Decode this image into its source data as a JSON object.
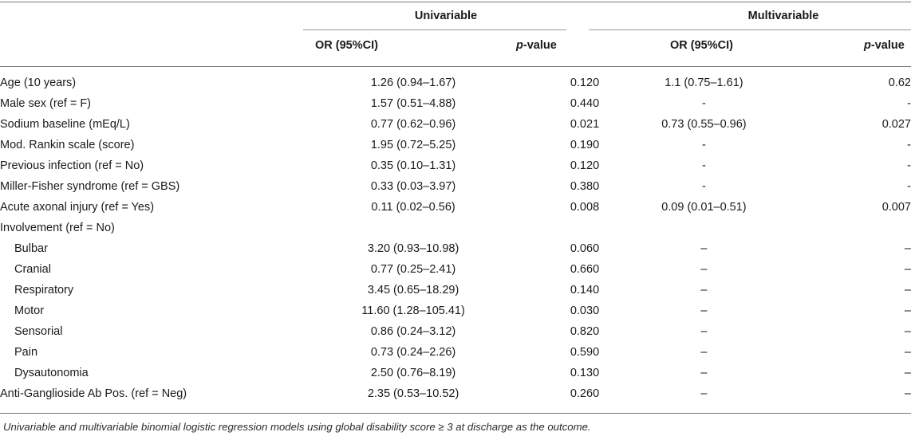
{
  "header": {
    "univariable": "Univariable",
    "multivariable": "Multivariable",
    "or_label": "OR (95%CI)",
    "p_italic": "p",
    "p_rest": "-value"
  },
  "rows": [
    {
      "label": "Age (10 years)",
      "u_or": "1.26 (0.94–1.67)",
      "u_p": "0.120",
      "m_or": "1.1 (0.75–1.61)",
      "m_p": "0.62",
      "indent": false
    },
    {
      "label": "Male sex (ref = F)",
      "u_or": "1.57 (0.51–4.88)",
      "u_p": "0.440",
      "m_or": "-",
      "m_p": "-",
      "indent": false
    },
    {
      "label": "Sodium baseline (mEq/L)",
      "u_or": "0.77 (0.62–0.96)",
      "u_p": "0.021",
      "m_or": "0.73 (0.55–0.96)",
      "m_p": "0.027",
      "indent": false
    },
    {
      "label": "Mod. Rankin scale (score)",
      "u_or": "1.95 (0.72–5.25)",
      "u_p": "0.190",
      "m_or": "-",
      "m_p": "-",
      "indent": false
    },
    {
      "label": "Previous infection (ref = No)",
      "u_or": "0.35 (0.10–1.31)",
      "u_p": "0.120",
      "m_or": "-",
      "m_p": "-",
      "indent": false
    },
    {
      "label": "Miller-Fisher syndrome (ref = GBS)",
      "u_or": "0.33 (0.03–3.97)",
      "u_p": "0.380",
      "m_or": "-",
      "m_p": "-",
      "indent": false
    },
    {
      "label": "Acute axonal injury (ref = Yes)",
      "u_or": "0.11 (0.02–0.56)",
      "u_p": "0.008",
      "m_or": "0.09 (0.01–0.51)",
      "m_p": "0.007",
      "indent": false
    },
    {
      "label": "Involvement (ref = No)",
      "u_or": "",
      "u_p": "",
      "m_or": "",
      "m_p": "",
      "indent": false
    },
    {
      "label": "Bulbar",
      "u_or": "3.20 (0.93–10.98)",
      "u_p": "0.060",
      "m_or": "–",
      "m_p": "–",
      "indent": true
    },
    {
      "label": "Cranial",
      "u_or": "0.77 (0.25–2.41)",
      "u_p": "0.660",
      "m_or": "–",
      "m_p": "–",
      "indent": true
    },
    {
      "label": "Respiratory",
      "u_or": "3.45 (0.65–18.29)",
      "u_p": "0.140",
      "m_or": "–",
      "m_p": "–",
      "indent": true
    },
    {
      "label": "Motor",
      "u_or": "11.60 (1.28–105.41)",
      "u_p": "0.030",
      "m_or": "–",
      "m_p": "–",
      "indent": true
    },
    {
      "label": "Sensorial",
      "u_or": "0.86 (0.24–3.12)",
      "u_p": "0.820",
      "m_or": "–",
      "m_p": "–",
      "indent": true
    },
    {
      "label": "Pain",
      "u_or": "0.73 (0.24–2.26)",
      "u_p": "0.590",
      "m_or": "–",
      "m_p": "–",
      "indent": true
    },
    {
      "label": "Dysautonomia",
      "u_or": "2.50 (0.76–8.19)",
      "u_p": "0.130",
      "m_or": "–",
      "m_p": "–",
      "indent": true
    },
    {
      "label": "Anti-Ganglioside Ab Pos. (ref = Neg)",
      "u_or": "2.35 (0.53–10.52)",
      "u_p": "0.260",
      "m_or": "–",
      "m_p": "–",
      "indent": false
    }
  ],
  "footnote": "Univariable and multivariable binomial logistic regression models using global disability score ≥ 3 at discharge as the outcome."
}
